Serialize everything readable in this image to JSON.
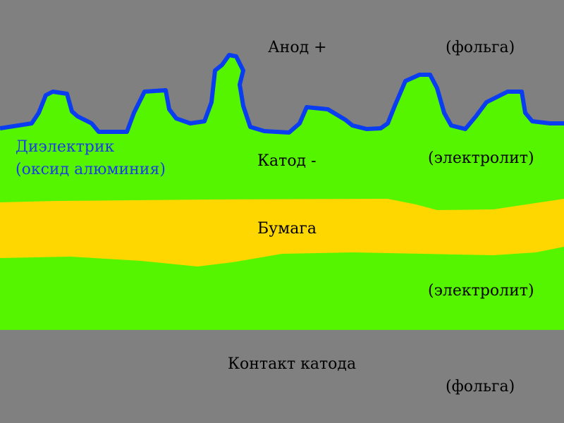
{
  "labels": {
    "anode": "Анод +",
    "anode_material": "(фольга)",
    "dielectric": "Диэлектрик",
    "dielectric_material": "(оксид алюминия)",
    "cathode": "Катод -",
    "cathode_material": "(электролит)",
    "paper": "Бумага",
    "lower_material": "(электролит)",
    "cathode_contact": "Контакт катода",
    "contact_material": "(фольга)"
  }
}
